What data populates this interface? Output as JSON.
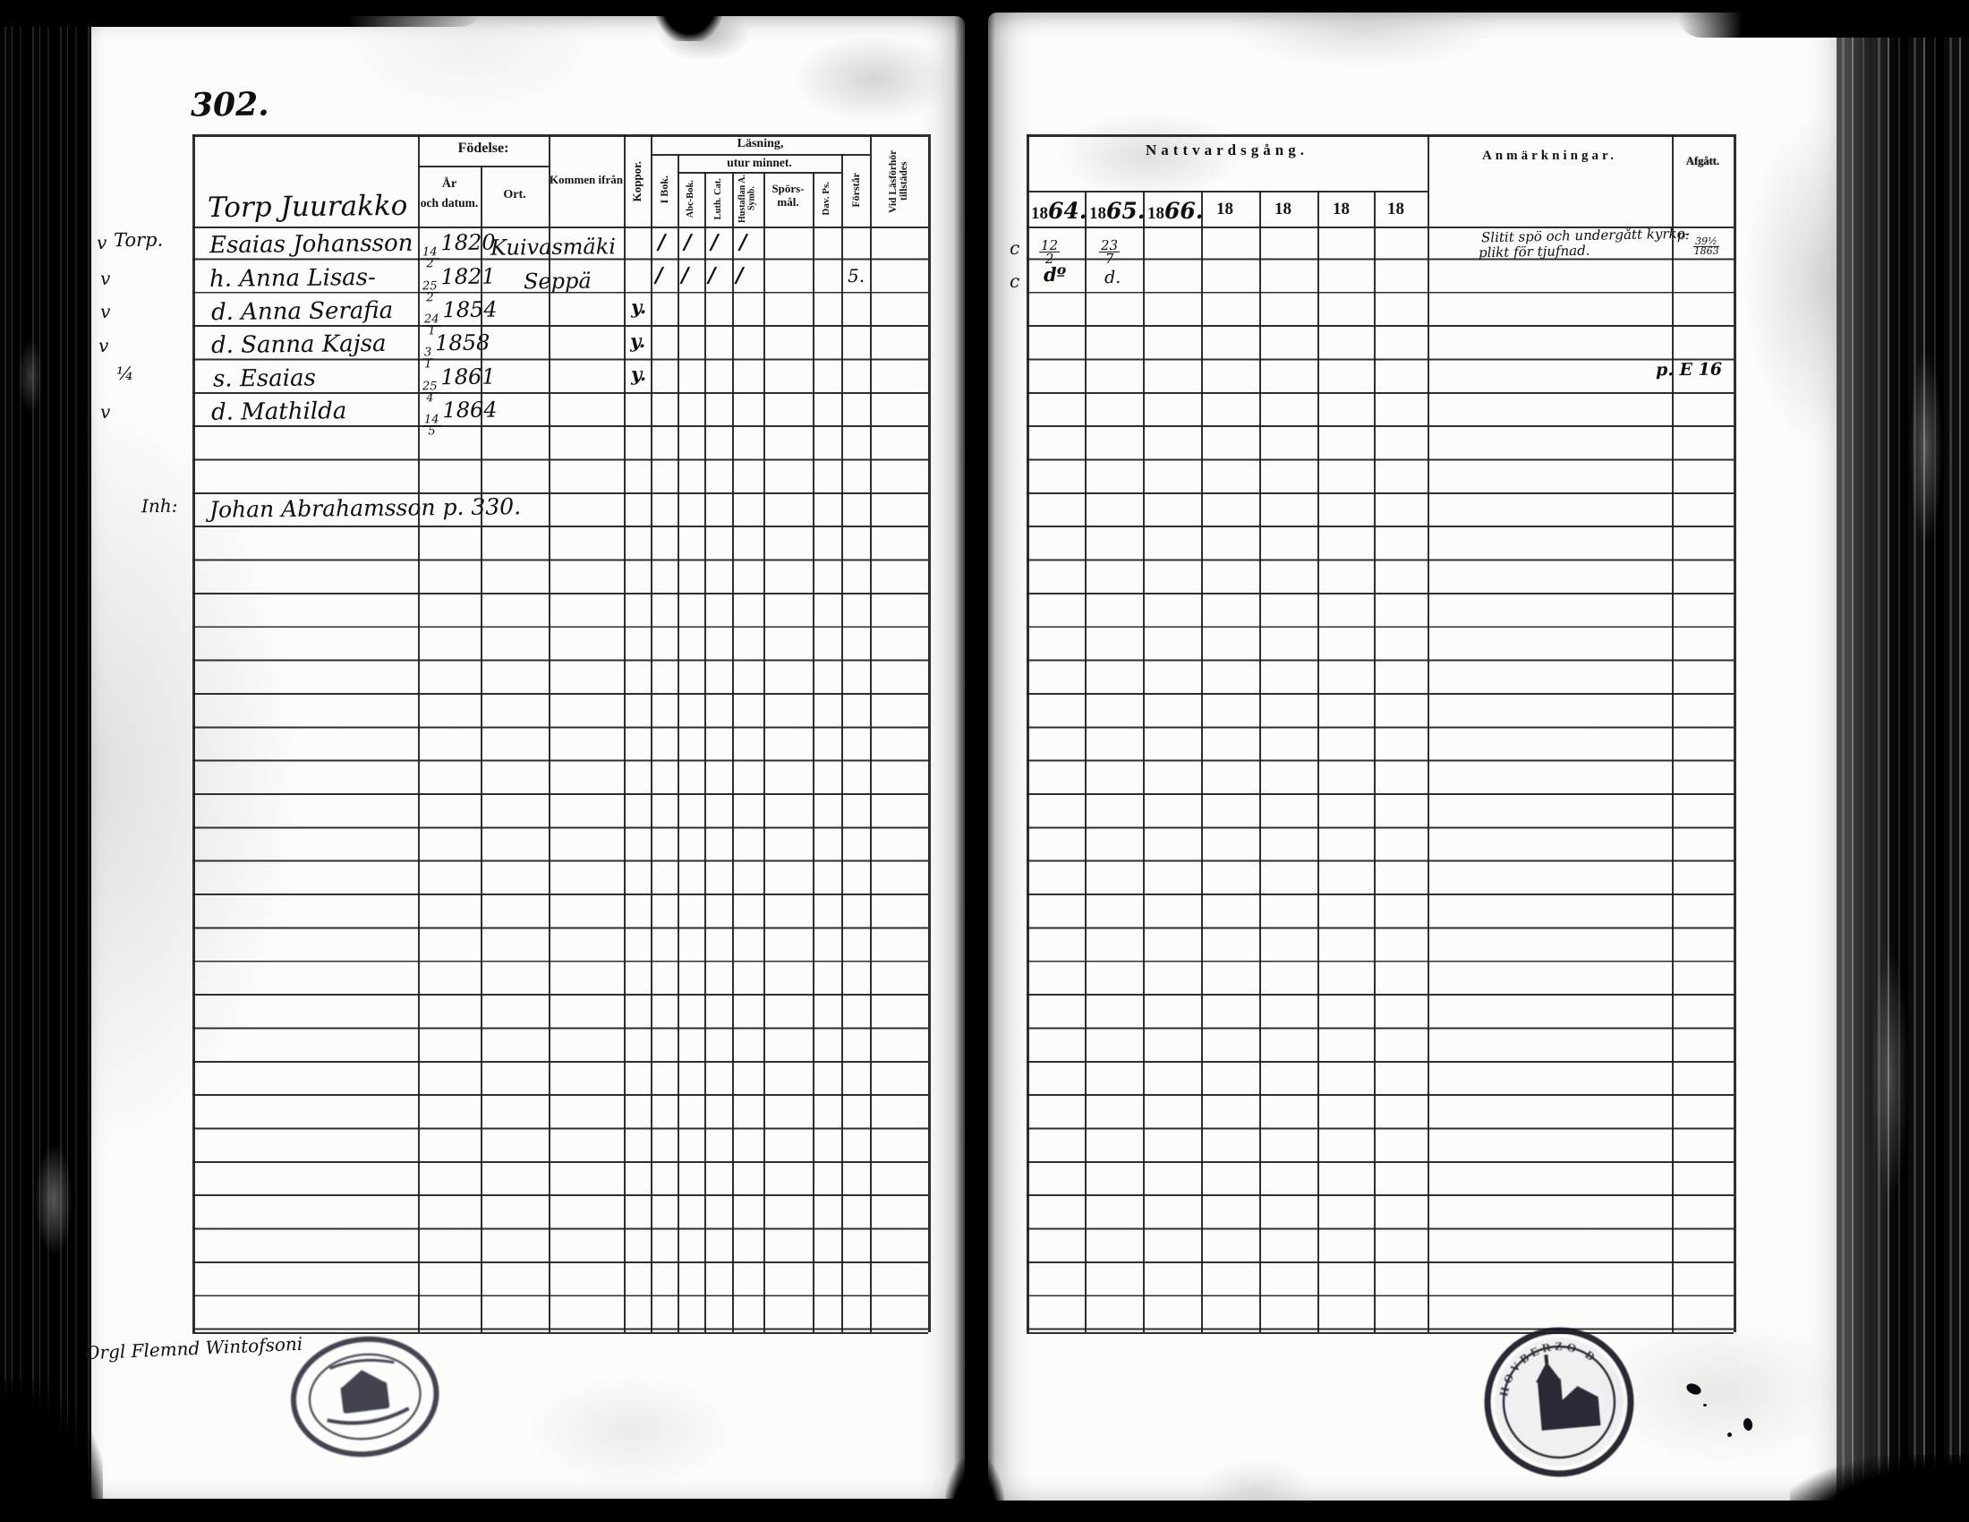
{
  "page_number": "302.",
  "left": {
    "headers": {
      "fodelse": "Födelse:",
      "ar": "År",
      "och_datum": "och datum.",
      "ort": "Ort.",
      "kommen": "Kommen ifrån",
      "koppor": "Koppor.",
      "lasning": "Läsning,",
      "utur": "utur minnet.",
      "ibok": "I Bok.",
      "abc": "Abc-Bok.",
      "luth": "Luth. Cat.",
      "symb": "Hustaflan A. Symb.",
      "sporsmal1": "Spörs-",
      "sporsmal2": "mål.",
      "davps": "Dav. Ps.",
      "forstar": "Förstår",
      "vid": "Vid Läsförhör tillstädes"
    },
    "farm": "Torp Juurakko",
    "slash": "∕",
    "rows": [
      {
        "check": "v",
        "title": "Torp.",
        "name": "Esaias Johansson",
        "bn": "14",
        "bd": "2",
        "by": "1820",
        "ort": "Kuivasmäki"
      },
      {
        "check": "v",
        "name": "h. Anna Lisas-",
        "bn": "25",
        "bd": "2",
        "by": "1821",
        "ort": "Seppä",
        "forstar_mark": "5."
      },
      {
        "check": "v",
        "name": "d. Anna Serafia",
        "bn": "24",
        "bd": "1",
        "by": "1854",
        "koppor": "y."
      },
      {
        "check": "v",
        "name": "d. Sanna Kajsa",
        "bn": "3",
        "bd": "1",
        "by": "1858",
        "koppor": "y."
      },
      {
        "check": "¼",
        "name": "s. Esaias",
        "bn": "25",
        "bd": "4",
        "by": "1861",
        "koppor": "y."
      },
      {
        "check": "v",
        "name": "d. Mathilda",
        "bn": "14",
        "bd": "5",
        "by": "1864"
      }
    ],
    "inh_label": "Inh:",
    "inh_name": "Johan Abrahamsson p. 330."
  },
  "right": {
    "headers": {
      "nattvard": "Nattvardsgång.",
      "anmarkningar": "Anmärkningar.",
      "afgatt": "Afgått."
    },
    "years": [
      "18",
      "18",
      "18",
      "18",
      "18",
      "18",
      "18"
    ],
    "year_hand": [
      "64.",
      "65.",
      "66.",
      "",
      "",
      "",
      ""
    ],
    "r1": {
      "c": "c",
      "d1n": "12",
      "d1d": "2",
      "d2n": "23",
      "d2d": "7",
      "anm1": "Slitit spö och undergått kyrko-",
      "anm2": "plikt för tjufnad.",
      "af_p": "p:",
      "afn": "39½",
      "afd": "1863"
    },
    "r2": {
      "c": "c",
      "d1": "dº",
      "d2": "d."
    },
    "r5_afgatt": "p. E 16"
  },
  "footer_scribble": "Orgl Flemnd Wintofsoni",
  "stamp_right_text": "HOVBERZO D"
}
